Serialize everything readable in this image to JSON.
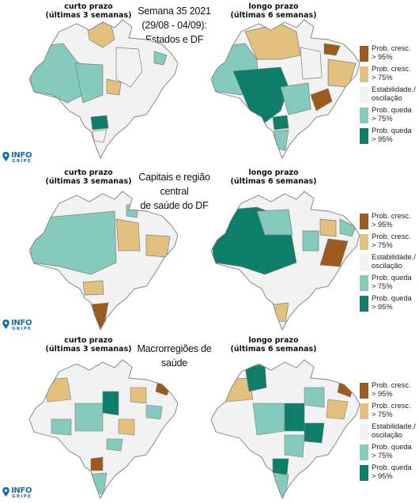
{
  "colors": {
    "prob_cresc_95": "#9c5a1c",
    "prob_cresc_75": "#e2c17f",
    "estabilidade": "#f2f2f2",
    "prob_queda_75": "#84cbbd",
    "prob_queda_95": "#0d7e6a",
    "border": "#7d7d7d"
  },
  "columns": {
    "short": {
      "line1": "curto prazo",
      "line2": "(últimas 3 semanas)"
    },
    "long": {
      "line1": "longo prazo",
      "line2": "(últimas 6 semanas)"
    }
  },
  "legend": [
    {
      "key": "prob_cresc_95",
      "line1": "Prob. cresc.",
      "line2": "> 95%"
    },
    {
      "key": "prob_cresc_75",
      "line1": "Prob. cresc.",
      "line2": "> 75%"
    },
    {
      "key": "estabilidade",
      "line1": "Estabilidade./",
      "line2": "oscilação"
    },
    {
      "key": "prob_queda_75",
      "line1": "Prob. queda",
      "line2": "> 75%"
    },
    {
      "key": "prob_queda_95",
      "line1": "Prob. queda",
      "line2": "> 95%"
    }
  ],
  "logo": {
    "word": "INFO",
    "sub": "GRIPE",
    "icon": "location-pin-icon"
  },
  "panels": [
    {
      "id": "estados",
      "title_lines": [
        "Semana 35 2021",
        "(29/08 - 04/09):",
        "Estados e DF"
      ]
    },
    {
      "id": "capitais",
      "title_lines": [
        "Capitais e região central",
        "de saúde do DF"
      ]
    },
    {
      "id": "macro",
      "title_lines": [
        "Macrorregiões de saúde"
      ]
    }
  ]
}
